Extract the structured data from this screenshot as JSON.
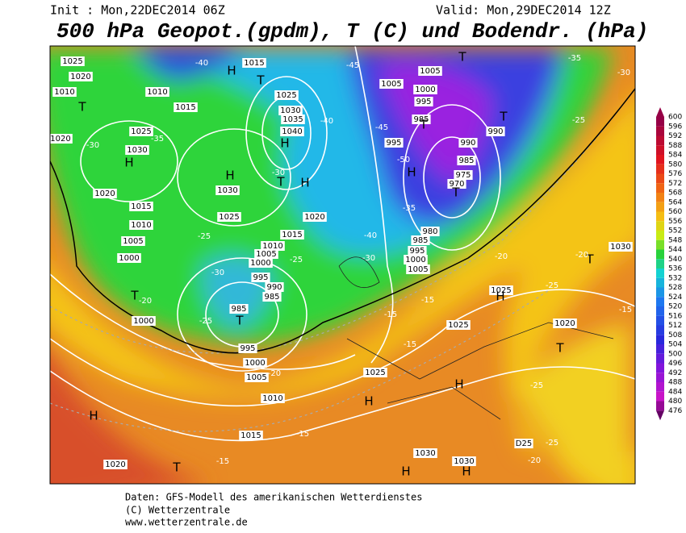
{
  "header": {
    "init": "Init : Mon,22DEC2014 06Z",
    "valid": "Valid: Mon,29DEC2014 12Z",
    "title": "500 hPa Geopot.(gpdm), T (C) und Bodendr. (hPa)"
  },
  "colorbar": {
    "levels": [
      600,
      596,
      592,
      588,
      584,
      580,
      576,
      572,
      568,
      564,
      560,
      556,
      552,
      548,
      544,
      540,
      536,
      532,
      528,
      524,
      520,
      516,
      512,
      508,
      504,
      500,
      496,
      492,
      488,
      484,
      480,
      476
    ]
  },
  "map": {
    "labels": [
      "1025",
      "1020",
      "1010",
      "T",
      "1020",
      "1025",
      "1030",
      "H",
      "1010",
      "1015",
      "1015",
      "H",
      "T",
      "1025",
      "1030",
      "1035",
      "1040",
      "H",
      "H",
      "1030",
      "1025",
      "1020",
      "1015",
      "T",
      "H",
      "1020",
      "1015",
      "1010",
      "1005",
      "1000",
      "T",
      "1000",
      "1010",
      "1005",
      "1000",
      "995",
      "990",
      "985",
      "985",
      "T",
      "995",
      "1000",
      "1005",
      "1010",
      "1015",
      "1020",
      "T",
      "H",
      "1025",
      "H",
      "H",
      "1025",
      "1030",
      "1030",
      "H",
      "H",
      "1025",
      "H",
      "1020",
      "T",
      "1030",
      "T",
      "D25",
      "1005",
      "1000",
      "995",
      "985",
      "T",
      "990",
      "T",
      "T",
      "1005",
      "995",
      "990",
      "985",
      "975",
      "970",
      "T",
      "H",
      "980",
      "985",
      "995",
      "1000",
      "1005",
      "-40",
      "-45",
      "-40",
      "-35",
      "-30",
      "-30",
      "-25",
      "-30",
      "-30",
      "-40",
      "-35",
      "-45",
      "-50",
      "-25",
      "-20",
      "-25",
      "-20",
      "-15",
      "-15",
      "-15",
      "-15",
      "-15",
      "-20",
      "-25",
      "-25",
      "-20",
      "-25",
      "-30",
      "-25",
      "-20",
      "-15",
      "-35"
    ]
  },
  "footer": {
    "lines": [
      "Daten: GFS-Modell des amerikanischen Wetterdienstes",
      "(C) Wetterzentrale",
      "www.wetterzentrale.de"
    ]
  }
}
